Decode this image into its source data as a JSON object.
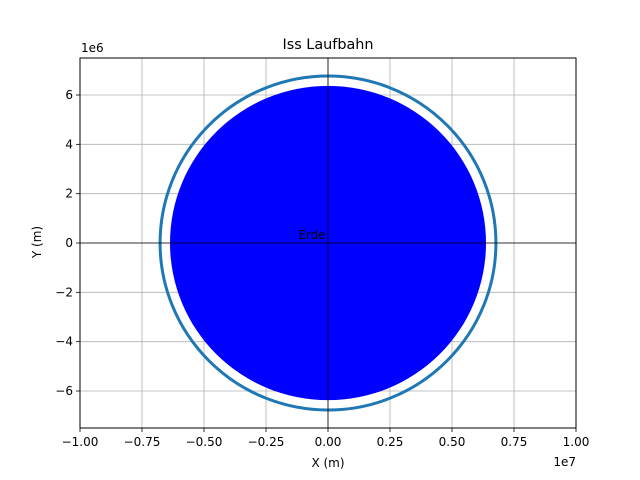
{
  "chart_data": {
    "type": "scatter",
    "title": "Iss Laufbahn",
    "xlabel": "X (m)",
    "ylabel": "Y (m)",
    "x_offset_label": "1e7",
    "y_offset_label": "1e6",
    "xlim": [
      -10000000,
      10000000
    ],
    "ylim": [
      -7500000,
      7500000
    ],
    "x_ticks": [
      -10000000,
      -7500000,
      -5000000,
      -2500000,
      0,
      2500000,
      5000000,
      7500000,
      10000000
    ],
    "x_tick_labels": [
      "−1.00",
      "−0.75",
      "−0.50",
      "−0.25",
      "0.00",
      "0.25",
      "0.50",
      "0.75",
      "1.00"
    ],
    "y_ticks": [
      -6000000,
      -4000000,
      -2000000,
      0,
      2000000,
      4000000,
      6000000
    ],
    "y_tick_labels": [
      "−6",
      "−4",
      "−2",
      "0",
      "2",
      "4",
      "6"
    ],
    "grid": true,
    "earth": {
      "label": "Erde",
      "radius": 6371000,
      "center": [
        0,
        0
      ],
      "color": "#0000ff"
    },
    "orbit": {
      "radius": 6771000,
      "center": [
        0,
        0
      ],
      "color": "#1f77b4"
    },
    "reference_lines": {
      "x": 0,
      "y": 0
    }
  }
}
